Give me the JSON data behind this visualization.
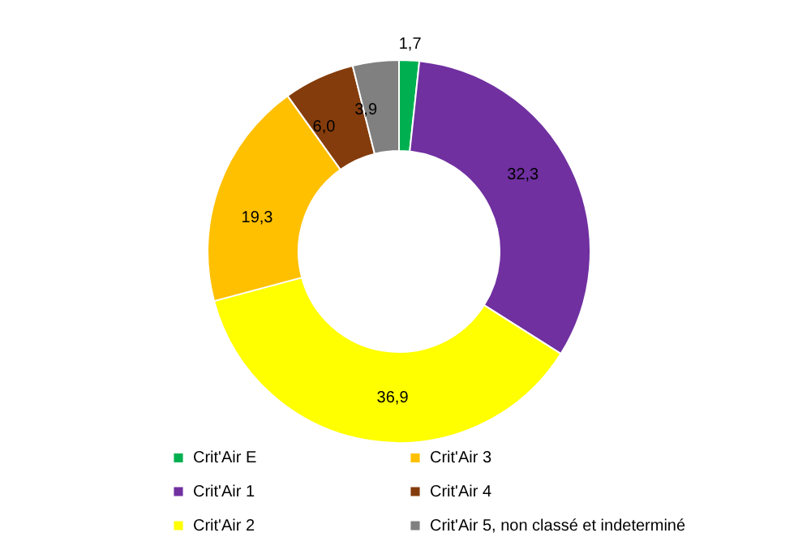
{
  "chart_data": {
    "type": "donut",
    "categories": [
      "Crit'Air E",
      "Crit'Air 1",
      "Crit'Air 2",
      "Crit'Air 3",
      "Crit'Air 4",
      "Crit'Air 5, non classé et indeterminé"
    ],
    "values": [
      1.7,
      32.3,
      36.9,
      19.3,
      6.0,
      3.9
    ],
    "value_labels": [
      "1,7",
      "32,3",
      "36,9",
      "19,3",
      "6,0",
      "3,9"
    ],
    "colors": [
      "#00b050",
      "#7030a0",
      "#ffff00",
      "#ffc000",
      "#843c0c",
      "#808080"
    ],
    "legend": "bottom"
  }
}
